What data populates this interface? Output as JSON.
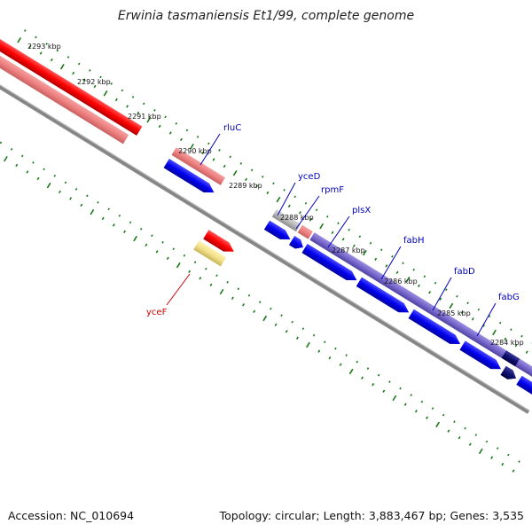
{
  "title": "Erwinia tasmaniensis Et1/99, complete genome",
  "footer": {
    "accession": "Accession: NC_010694",
    "stats": "Topology: circular; Length: 3,883,467 bp; Genes: 3,535"
  },
  "colors": {
    "backbone": "#8a8a8a",
    "ticks": "#1a7a1a",
    "gene_label_forward": "#0000bb",
    "gene_label_reverse": "#cc0000",
    "cds": "#0000ee",
    "rna": "#ff0000",
    "cog": "#7766cc"
  },
  "kbp_ticks": [
    "2293 kbp",
    "2292 kbp",
    "2291 kbp",
    "2290 kbp",
    "2289 kbp",
    "2288 kbp",
    "2287 kbp",
    "2286 kbp",
    "2285 kbp",
    "2284 kbp"
  ],
  "gene_labels": [
    {
      "name": "rluC",
      "strand": "forward"
    },
    {
      "name": "yceD",
      "strand": "forward"
    },
    {
      "name": "rpmF",
      "strand": "forward"
    },
    {
      "name": "plsX",
      "strand": "forward"
    },
    {
      "name": "fabH",
      "strand": "forward"
    },
    {
      "name": "fabD",
      "strand": "forward"
    },
    {
      "name": "fabG",
      "strand": "forward"
    },
    {
      "name": "yceF",
      "strand": "reverse"
    }
  ]
}
